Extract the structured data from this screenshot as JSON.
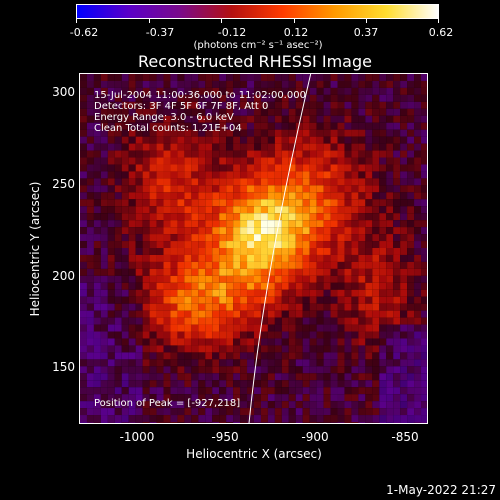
{
  "colorbar": {
    "min_label": "-0.62",
    "labels": [
      "-0.62",
      "-0.37",
      "-0.12",
      "0.12",
      "0.37",
      "0.62"
    ],
    "units": "(photons cm⁻² s⁻¹ asec⁻²)",
    "colormap": [
      "#0000ff",
      "#5a00c8",
      "#7a0a8a",
      "#b41010",
      "#ff3c00",
      "#ff9a00",
      "#ffdd30",
      "#ffffff"
    ]
  },
  "plot": {
    "title": "Reconstructed RHESSI Image",
    "info_lines": [
      "15-Jul-2004 11:00:36.000 to 11:02:00.000",
      "Detectors: 3F 4F 5F 6F 7F 8F, Att 0",
      "Energy Range: 3.0 - 6.0 keV",
      "Clean     Total counts: 1.21E+04"
    ],
    "peak_label": "Position of Peak = [-927,218]",
    "xlabel": "Heliocentric X (arcsec)",
    "ylabel": "Heliocentric Y (arcsec)",
    "x_ticks": [
      "-1000",
      "-950",
      "-900",
      "-850"
    ],
    "y_ticks": [
      "300",
      "250",
      "200",
      "150"
    ]
  },
  "footer": {
    "timestamp": "1-May-2022 21:27"
  }
}
